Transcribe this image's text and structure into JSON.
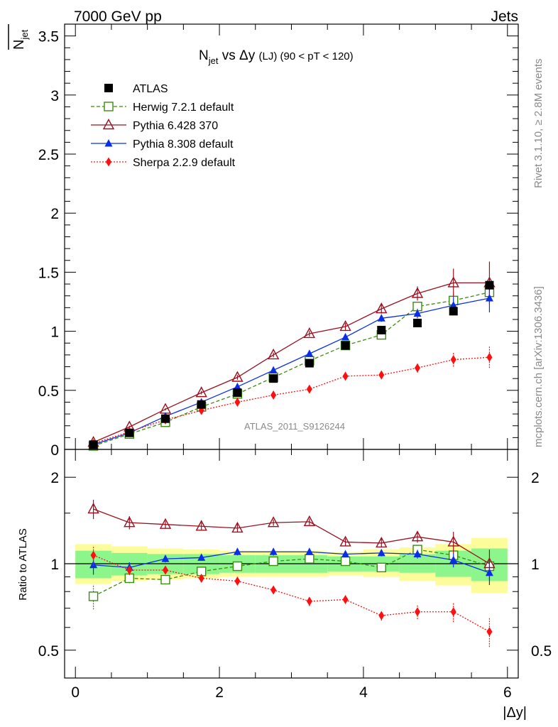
{
  "header": {
    "left": "7000 GeV pp",
    "right": "Jets"
  },
  "side": {
    "rivet": "Rivet 3.1.10, ≥ 2.8M events",
    "mcplots": "mcplots.cern.ch [arXiv:1306.3436]"
  },
  "main_plot": {
    "title_n": "N",
    "title_n_sub": "jet",
    "title_vs": " vs Δy ",
    "title_lj": "(LJ)",
    "title_range": " (90 < pT < 120)",
    "ylabel_n": "N",
    "ylabel_sub": "jet",
    "watermark": "ATLAS_2011_S9126244",
    "ytick_labels": [
      "0",
      "0.5",
      "1",
      "1.5",
      "2",
      "2.5",
      "3",
      "3.5"
    ]
  },
  "ratio_plot": {
    "ylabel": "Ratio to ATLAS",
    "ytick_labels": [
      "0.5",
      "1",
      "2"
    ],
    "xtick_labels": [
      "0",
      "2",
      "4",
      "6"
    ],
    "xlabel": "|Δy|"
  },
  "colors": {
    "atlas": "#000000",
    "herwig": "#3a8c0c",
    "pythia6": "#9b1020",
    "pythia8": "#0a2ee6",
    "sherpa": "#ff1010",
    "band_inner": "#8cf58c",
    "band_outer": "#fcfc9a"
  },
  "chart_data": {
    "type": "scatter",
    "x": [
      0.25,
      0.75,
      1.25,
      1.75,
      2.25,
      2.75,
      3.25,
      3.75,
      4.25,
      4.75,
      5.25,
      5.75
    ],
    "xlim": [
      -0.15,
      6.15
    ],
    "main_ylim": [
      0,
      3.6
    ],
    "ratio_ylim_log": [
      0.4,
      2.5
    ],
    "series": [
      {
        "name": "ATLAS",
        "key": "atlas",
        "marker": "square-filled",
        "line": "none",
        "values": [
          0.04,
          0.14,
          0.26,
          0.38,
          0.48,
          0.6,
          0.73,
          0.88,
          1.01,
          1.07,
          1.17,
          1.39
        ],
        "errors": [
          0.005,
          0.005,
          0.005,
          0.005,
          0.01,
          0.01,
          0.01,
          0.01,
          0.02,
          0.02,
          0.03,
          0.04
        ]
      },
      {
        "name": "Herwig 7.2.1 default",
        "key": "herwig",
        "marker": "square-open",
        "line": "dashed",
        "values": [
          0.03,
          0.13,
          0.23,
          0.36,
          0.47,
          0.61,
          0.75,
          0.88,
          0.97,
          1.21,
          1.26,
          1.33
        ],
        "errors": [
          0.003,
          0.005,
          0.008,
          0.01,
          0.01,
          0.015,
          0.02,
          0.025,
          0.03,
          0.04,
          0.06,
          0.08
        ],
        "ratio": [
          0.77,
          0.89,
          0.88,
          0.94,
          0.98,
          1.02,
          1.04,
          1.02,
          0.97,
          1.12,
          1.07,
          0.98
        ]
      },
      {
        "name": "Pythia 6.428 370",
        "key": "pythia6",
        "marker": "triangle-open",
        "line": "solid",
        "values": [
          0.06,
          0.19,
          0.34,
          0.48,
          0.61,
          0.8,
          0.98,
          1.04,
          1.19,
          1.32,
          1.41,
          1.41
        ],
        "errors": [
          0.005,
          0.01,
          0.01,
          0.015,
          0.02,
          0.02,
          0.025,
          0.03,
          0.04,
          0.06,
          0.12,
          0.18
        ],
        "ratio": [
          1.55,
          1.39,
          1.37,
          1.35,
          1.33,
          1.39,
          1.4,
          1.19,
          1.18,
          1.24,
          1.19,
          1.0
        ]
      },
      {
        "name": "Pythia 8.308 default",
        "key": "pythia8",
        "marker": "triangle-filled",
        "line": "solid",
        "values": [
          0.04,
          0.14,
          0.28,
          0.4,
          0.53,
          0.67,
          0.81,
          0.95,
          1.11,
          1.15,
          1.22,
          1.28
        ],
        "errors": [
          0.003,
          0.006,
          0.008,
          0.01,
          0.015,
          0.02,
          0.02,
          0.025,
          0.03,
          0.04,
          0.07,
          0.12
        ],
        "ratio": [
          0.99,
          0.97,
          1.04,
          1.05,
          1.1,
          1.1,
          1.1,
          1.08,
          1.09,
          1.08,
          1.03,
          0.93
        ]
      },
      {
        "name": "Sherpa 2.2.9 default",
        "key": "sherpa",
        "marker": "diamond-filled",
        "line": "dotted",
        "values": [
          0.05,
          0.15,
          0.25,
          0.33,
          0.4,
          0.46,
          0.51,
          0.62,
          0.63,
          0.69,
          0.76,
          0.78
        ],
        "errors": [
          0.004,
          0.006,
          0.008,
          0.01,
          0.012,
          0.015,
          0.02,
          0.02,
          0.025,
          0.04,
          0.06,
          0.09
        ],
        "ratio": [
          1.07,
          0.95,
          0.95,
          0.89,
          0.87,
          0.81,
          0.74,
          0.75,
          0.66,
          0.68,
          0.68,
          0.58
        ]
      }
    ],
    "ratio_band": {
      "edges": [
        0,
        0.5,
        1,
        1.5,
        2,
        2.5,
        3,
        3.5,
        4,
        4.5,
        5,
        5.5,
        6
      ],
      "inner_lo": [
        0.89,
        0.91,
        0.92,
        0.92,
        0.93,
        0.93,
        0.93,
        0.94,
        0.94,
        0.93,
        0.9,
        0.87
      ],
      "inner_hi": [
        1.11,
        1.09,
        1.08,
        1.08,
        1.07,
        1.07,
        1.07,
        1.06,
        1.06,
        1.08,
        1.11,
        1.13
      ],
      "outer_lo": [
        0.85,
        0.87,
        0.88,
        0.89,
        0.9,
        0.9,
        0.9,
        0.91,
        0.9,
        0.87,
        0.84,
        0.79
      ],
      "outer_hi": [
        1.17,
        1.15,
        1.13,
        1.12,
        1.11,
        1.11,
        1.11,
        1.1,
        1.12,
        1.14,
        1.17,
        1.23
      ]
    }
  }
}
